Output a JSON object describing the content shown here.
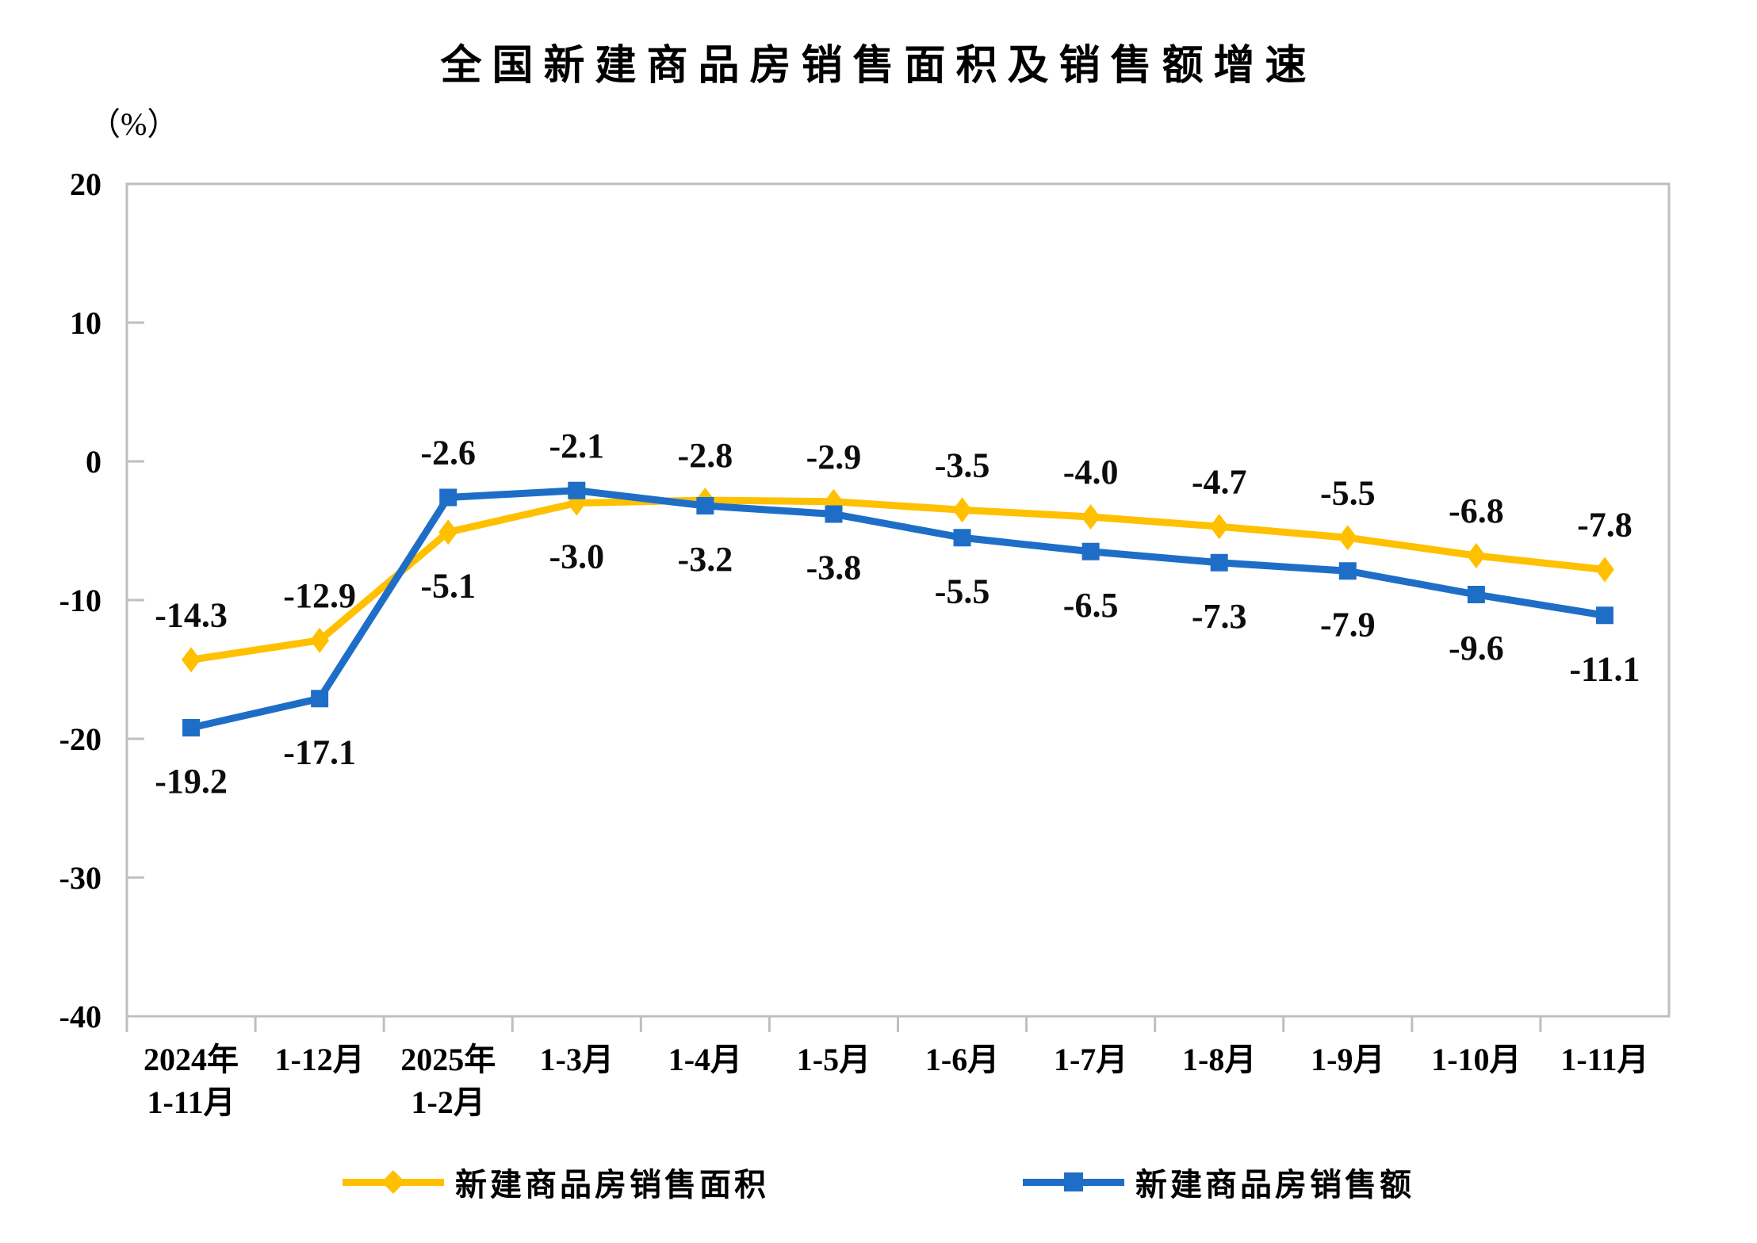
{
  "chart": {
    "title": "全国新建商品房销售面积及销售额增速",
    "unit_label": "（%）",
    "border_color": "#BFBFBF",
    "text_color": "#000000"
  },
  "chart_data": {
    "type": "line",
    "title": "全国新建商品房销售面积及销售额增速",
    "xlabel": "",
    "ylabel": "（%）",
    "ylim": [
      -40,
      20
    ],
    "yticks": [
      20,
      10,
      0,
      -10,
      -20,
      -30,
      -40
    ],
    "grid": false,
    "legend_position": "bottom",
    "categories": [
      [
        "2024年",
        "1-11月"
      ],
      [
        "1-12月"
      ],
      [
        "2025年",
        "1-2月"
      ],
      [
        "1-3月"
      ],
      [
        "1-4月"
      ],
      [
        "1-5月"
      ],
      [
        "1-6月"
      ],
      [
        "1-7月"
      ],
      [
        "1-8月"
      ],
      [
        "1-9月"
      ],
      [
        "1-10月"
      ],
      [
        "1-11月"
      ]
    ],
    "series": [
      {
        "name": "新建商品房销售面积",
        "color": "#FFC000",
        "marker": "diamond",
        "values": [
          -14.3,
          -12.9,
          -5.1,
          -3.0,
          -2.8,
          -2.9,
          -3.5,
          -4.0,
          -4.7,
          -5.5,
          -6.8,
          -7.8
        ]
      },
      {
        "name": "新建商品房销售额",
        "color": "#1E6EC8",
        "marker": "square",
        "values": [
          -19.2,
          -17.1,
          -2.6,
          -2.1,
          -3.2,
          -3.8,
          -5.5,
          -6.5,
          -7.3,
          -7.9,
          -9.6,
          -11.1
        ]
      }
    ]
  }
}
